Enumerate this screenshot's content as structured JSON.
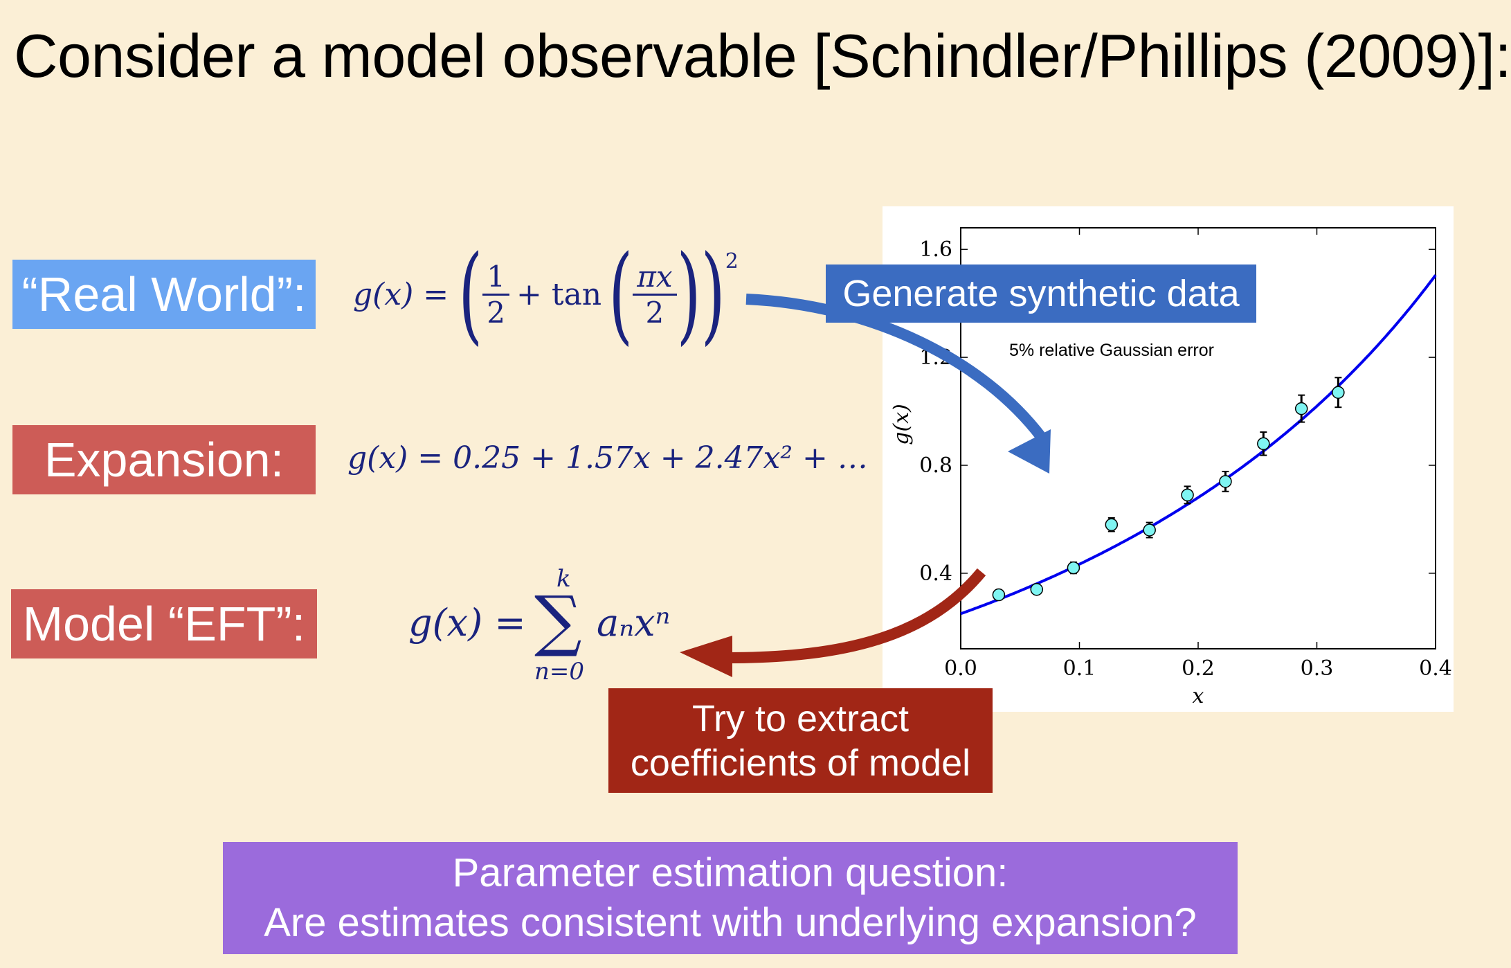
{
  "title": "Consider a model observable [Schindler/Phillips (2009)]:",
  "labels": {
    "real_world": "“Real World”:",
    "expansion": "Expansion:",
    "model_eft": "Model “EFT”:"
  },
  "equations": {
    "real_world": {
      "lhs": "g(x) =",
      "half_num": "1",
      "half_den": "2",
      "plus_tan": "+ tan",
      "arg_num": "πx",
      "arg_den": "2",
      "power": "2"
    },
    "expansion": "g(x) = 0.25 + 1.57x + 2.47x² + …",
    "model_eft": {
      "lhs": "g(x) =",
      "sum_top": "k",
      "sum_symbol": "∑",
      "sum_bottom": "n=0",
      "term": "aₙxⁿ"
    }
  },
  "callouts": {
    "generate": "Generate synthetic data",
    "extract_line1": "Try to extract",
    "extract_line2": "coefficients of model",
    "question_line1": "Parameter estimation question:",
    "question_line2": "Are estimates consistent with underlying expansion?"
  },
  "colors": {
    "background": "#fbefd6",
    "real_world_box": "#6aa5f2",
    "expansion_box": "#cd5c57",
    "model_box": "#cd5c57",
    "generate_box": "#3b6cc1",
    "extract_box": "#a12616",
    "question_box": "#9b6bdc",
    "curve": "#0000ee",
    "points": "#7ff5f2"
  },
  "chart_data": {
    "type": "scatter",
    "annotation": "5% relative Gaussian error",
    "xlabel": "x",
    "ylabel": "g(x)",
    "xlim": [
      0.0,
      0.4
    ],
    "ylim": [
      0.12,
      1.68
    ],
    "xticks": [
      "0.0",
      "0.1",
      "0.2",
      "0.3",
      "0.4"
    ],
    "yticks": [
      "0.4",
      "0.8",
      "1.2",
      "1.6"
    ],
    "curve": "g(x) = (1/2 + tan(πx/2))^2",
    "points": [
      {
        "x": 0.032,
        "y": 0.32,
        "err": 0.016
      },
      {
        "x": 0.064,
        "y": 0.34,
        "err": 0.017
      },
      {
        "x": 0.095,
        "y": 0.42,
        "err": 0.021
      },
      {
        "x": 0.127,
        "y": 0.58,
        "err": 0.025
      },
      {
        "x": 0.159,
        "y": 0.56,
        "err": 0.028
      },
      {
        "x": 0.191,
        "y": 0.69,
        "err": 0.032
      },
      {
        "x": 0.223,
        "y": 0.74,
        "err": 0.037
      },
      {
        "x": 0.255,
        "y": 0.88,
        "err": 0.043
      },
      {
        "x": 0.287,
        "y": 1.01,
        "err": 0.05
      },
      {
        "x": 0.318,
        "y": 1.07,
        "err": 0.055
      }
    ]
  }
}
